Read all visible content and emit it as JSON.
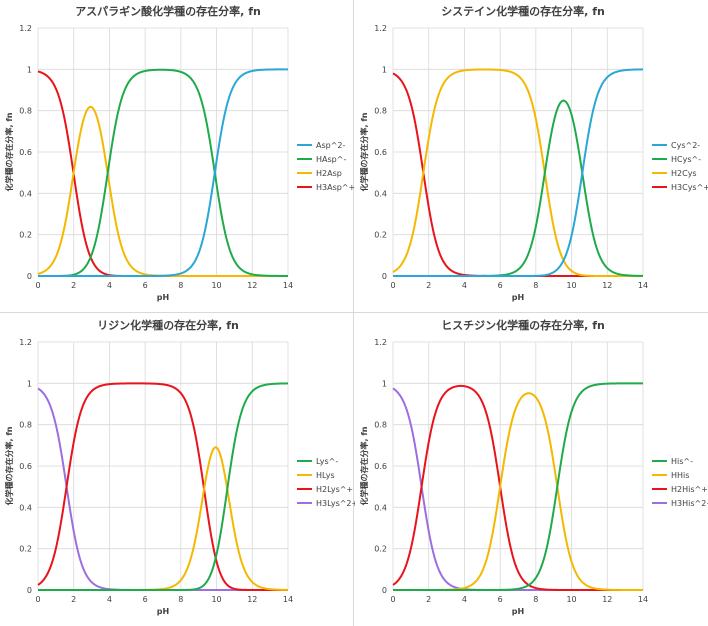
{
  "chart_data": [
    {
      "type": "line",
      "title": "アスパラギン酸化学種の存在分率, fn",
      "xlabel": "pH",
      "ylabel": "化学種の存在分率, fn",
      "xlim": [
        0,
        14
      ],
      "ylim": [
        0,
        1.2
      ],
      "xticks": [
        0,
        2,
        4,
        6,
        8,
        10,
        12,
        14
      ],
      "yticks": [
        0,
        0.2,
        0.4,
        0.6,
        0.8,
        1,
        1.2
      ],
      "grid": true,
      "legend": "right",
      "pKa": [
        1.99,
        3.9,
        9.9
      ],
      "series": [
        {
          "name": "Asp^2-",
          "color": "#2aa7d6",
          "charge_index": 3
        },
        {
          "name": "HAsp^-",
          "color": "#1fab4a",
          "charge_index": 2
        },
        {
          "name": "H2Asp",
          "color": "#f5b800",
          "charge_index": 1
        },
        {
          "name": "H3Asp^+",
          "color": "#e8141a",
          "charge_index": 0
        }
      ]
    },
    {
      "type": "line",
      "title": "システイン化学種の存在分率, fn",
      "xlabel": "pH",
      "ylabel": "化学種の存在分率, fn",
      "xlim": [
        0,
        14
      ],
      "ylim": [
        0,
        1.2
      ],
      "xticks": [
        0,
        2,
        4,
        6,
        8,
        10,
        12,
        14
      ],
      "yticks": [
        0,
        0.2,
        0.4,
        0.6,
        0.8,
        1,
        1.2
      ],
      "grid": true,
      "legend": "right",
      "pKa": [
        1.7,
        8.5,
        10.6
      ],
      "series": [
        {
          "name": "Cys^2-",
          "color": "#2aa7d6",
          "charge_index": 3
        },
        {
          "name": "HCys^-",
          "color": "#1fab4a",
          "charge_index": 2
        },
        {
          "name": "H2Cys",
          "color": "#f5b800",
          "charge_index": 1
        },
        {
          "name": "H3Cys^+",
          "color": "#e8141a",
          "charge_index": 0
        }
      ]
    },
    {
      "type": "line",
      "title": "リジン化学種の存在分率, fn",
      "xlabel": "pH",
      "ylabel": "化学種の存在分率, fn",
      "xlim": [
        0,
        14
      ],
      "ylim": [
        0,
        1.2
      ],
      "xticks": [
        0,
        2,
        4,
        6,
        8,
        10,
        12,
        14
      ],
      "yticks": [
        0,
        0.2,
        0.4,
        0.6,
        0.8,
        1,
        1.2
      ],
      "grid": true,
      "legend": "right",
      "pKa": [
        1.6,
        9.3,
        10.6
      ],
      "series": [
        {
          "name": "Lys^-",
          "color": "#1fab4a",
          "charge_index": 3
        },
        {
          "name": "HLys",
          "color": "#f5b800",
          "charge_index": 2
        },
        {
          "name": "H2Lys^+",
          "color": "#e8141a",
          "charge_index": 1
        },
        {
          "name": "H3Lys^2+",
          "color": "#9b6fe0",
          "charge_index": 0
        }
      ]
    },
    {
      "type": "line",
      "title": "ヒスチジン化学種の存在分率, fn",
      "xlabel": "pH",
      "ylabel": "化学種の存在分率, fn",
      "xlim": [
        0,
        14
      ],
      "ylim": [
        0,
        1.2
      ],
      "xticks": [
        0,
        2,
        4,
        6,
        8,
        10,
        12,
        14
      ],
      "yticks": [
        0,
        0.2,
        0.4,
        0.6,
        0.8,
        1,
        1.2
      ],
      "grid": true,
      "legend": "right",
      "pKa": [
        1.6,
        6.0,
        9.2
      ],
      "series": [
        {
          "name": "His^-",
          "color": "#1fab4a",
          "charge_index": 3
        },
        {
          "name": "HHis",
          "color": "#f5b800",
          "charge_index": 2
        },
        {
          "name": "H2His^+",
          "color": "#e8141a",
          "charge_index": 1
        },
        {
          "name": "H3His^2+",
          "color": "#9b6fe0",
          "charge_index": 0
        }
      ]
    }
  ],
  "colors": {
    "grid": "#d9d9d9",
    "axis": "#bfbfbf",
    "text": "#404040"
  }
}
